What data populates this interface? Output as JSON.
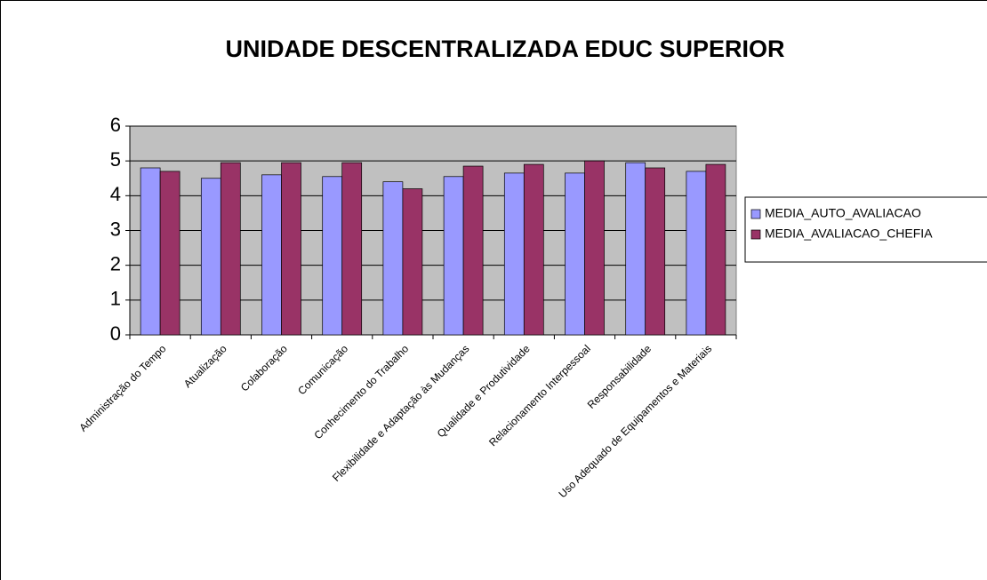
{
  "chart_data": {
    "type": "bar",
    "title": "UNIDADE DESCENTRALIZADA EDUC SUPERIOR",
    "categories": [
      "Administração do Tempo",
      "Atualização",
      "Colaboração",
      "Comunicação",
      "Conhecimento do Trabalho",
      "Flexibilidade e Adaptação às Mudanças",
      "Qualidade e Produtividade",
      "Relacionamento Interpessoal",
      "Responsabilidade",
      "Uso Adequado de Equipamentos e Materiais"
    ],
    "series": [
      {
        "name": "MEDIA_AUTO_AVALIACAO",
        "color": "#9999ff",
        "values": [
          4.8,
          4.5,
          4.6,
          4.55,
          4.4,
          4.55,
          4.65,
          4.65,
          4.95,
          4.7
        ]
      },
      {
        "name": "MEDIA_AVALIACAO_CHEFIA",
        "color": "#993366",
        "values": [
          4.7,
          4.95,
          4.95,
          4.95,
          4.2,
          4.85,
          4.9,
          5.0,
          4.8,
          4.9
        ]
      }
    ],
    "ylim": [
      0,
      6
    ],
    "yticks": [
      0,
      1,
      2,
      3,
      4,
      5,
      6
    ],
    "grid": true,
    "legend": "right"
  }
}
